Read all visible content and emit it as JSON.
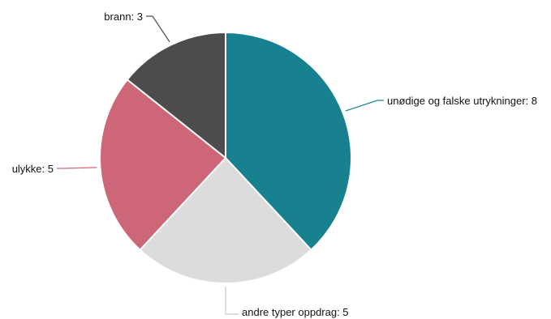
{
  "chart_data": {
    "type": "pie",
    "slices": [
      {
        "name": "unødige og falske utrykninger",
        "value": 8,
        "label": "unødige og falske utrykninger: 8",
        "color": "#17818f"
      },
      {
        "name": "andre typer oppdrag",
        "value": 5,
        "label": "andre typer oppdrag: 5",
        "color": "#dcdcdc"
      },
      {
        "name": "ulykke",
        "value": 5,
        "label": "ulykke: 5",
        "color": "#cd6677"
      },
      {
        "name": "brann",
        "value": 3,
        "label": "brann: 3",
        "color": "#4d4b4c"
      }
    ],
    "start": "top",
    "direction": "clockwise",
    "legend": "none"
  }
}
